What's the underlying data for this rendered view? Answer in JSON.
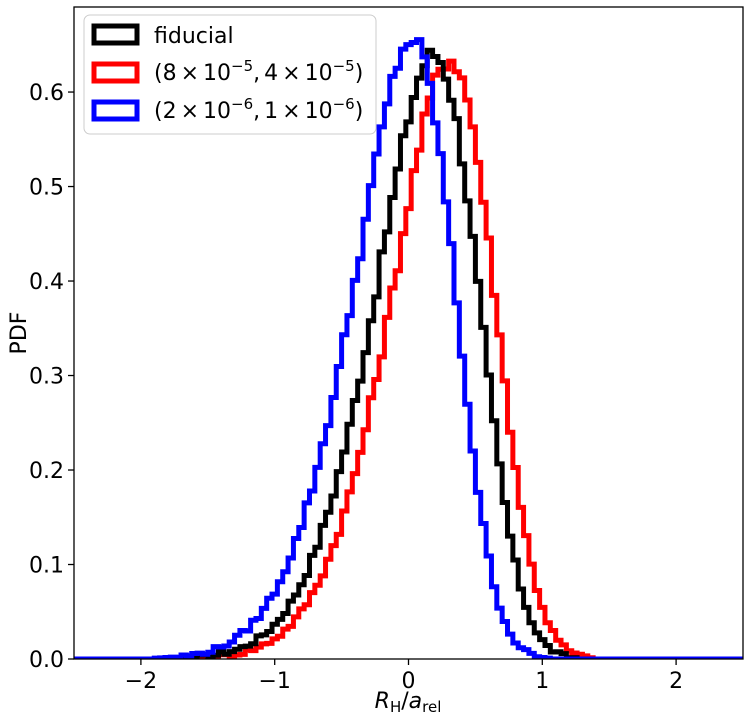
{
  "chart_data": {
    "type": "histogram-step",
    "xlabel": "R_H/a_rel",
    "ylabel": "PDF",
    "xlim": [
      -2.5,
      2.5
    ],
    "ylim": [
      0.0,
      0.69
    ],
    "xticks": [
      -2,
      -1,
      0,
      1,
      2
    ],
    "xtick_labels": [
      "−2",
      "−1",
      "0",
      "1",
      "2"
    ],
    "yticks": [
      0.0,
      0.1,
      0.2,
      0.3,
      0.4,
      0.5,
      0.6
    ],
    "ytick_labels": [
      "0.0",
      "0.1",
      "0.2",
      "0.3",
      "0.4",
      "0.5",
      "0.6"
    ],
    "grid": false,
    "legend_position": "upper-left",
    "bin_width": 0.04,
    "series": [
      {
        "name": "fiducial",
        "color": "#000000",
        "mean": 0.5,
        "sigma": 0.6,
        "skew": -2.2,
        "peak": 0.64
      },
      {
        "name": "(8×10⁻⁵, 4×10⁻⁵)",
        "color": "#ff0000",
        "mean": 0.62,
        "sigma": 0.6,
        "skew": -2.2,
        "peak": 0.635
      },
      {
        "name": "(2×10⁻⁶, 1×10⁻⁶)",
        "color": "#0000ff",
        "mean": 0.33,
        "sigma": 0.6,
        "skew": -2.4,
        "peak": 0.655
      }
    ]
  }
}
